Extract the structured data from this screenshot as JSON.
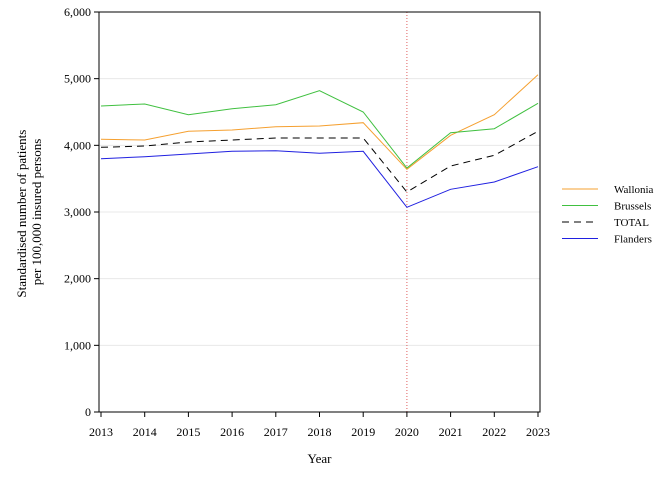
{
  "chart_data": {
    "type": "line",
    "xlabel": "Year",
    "ylabel_lines": [
      "Standardised number of patients",
      "per 100,000 insured persons"
    ],
    "x": [
      2013,
      2014,
      2015,
      2016,
      2017,
      2018,
      2019,
      2020,
      2021,
      2022,
      2023
    ],
    "x_tick_labels": [
      "2013",
      "2014",
      "2015",
      "2016",
      "2017",
      "2018",
      "2019",
      "2020",
      "2021",
      "2022",
      "2023"
    ],
    "ylim": [
      0,
      6000
    ],
    "y_ticks": [
      0,
      1000,
      2000,
      3000,
      4000,
      5000,
      6000
    ],
    "y_tick_labels": [
      "0",
      "1,000",
      "2,000",
      "3,000",
      "4,000",
      "5,000",
      "6,000"
    ],
    "grid": "horizontal",
    "legend_position": "right",
    "reference_line": {
      "x": 2020,
      "color": "#e06060",
      "style": "dotted"
    },
    "series": [
      {
        "name": "Wallonia",
        "color": "#f5a030",
        "dash": "solid",
        "values": [
          4090,
          4080,
          4210,
          4230,
          4280,
          4290,
          4340,
          3640,
          4150,
          4460,
          5060
        ]
      },
      {
        "name": "Brussels",
        "color": "#40c040",
        "dash": "solid",
        "values": [
          4590,
          4620,
          4460,
          4550,
          4610,
          4820,
          4500,
          3660,
          4190,
          4250,
          4630
        ]
      },
      {
        "name": "TOTAL",
        "color": "#000000",
        "dash": "dashed",
        "values": [
          3970,
          3990,
          4050,
          4080,
          4110,
          4110,
          4110,
          3300,
          3690,
          3850,
          4210
        ]
      },
      {
        "name": "Flanders",
        "color": "#2020e0",
        "dash": "solid",
        "values": [
          3800,
          3830,
          3870,
          3910,
          3920,
          3880,
          3910,
          3070,
          3340,
          3450,
          3680
        ]
      }
    ]
  }
}
